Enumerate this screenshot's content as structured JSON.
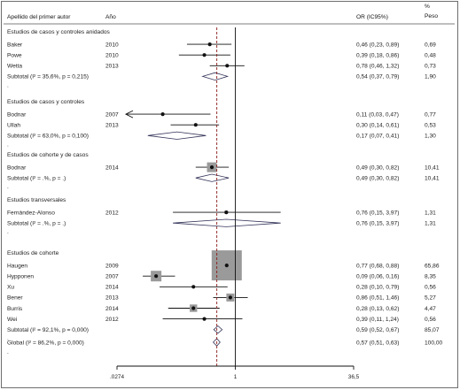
{
  "chart_data": {
    "type": "forest",
    "x_scale": "log",
    "xlim": [
      0.0274,
      36.5
    ],
    "null_value": 1,
    "overall_reference": 0.57,
    "columns": {
      "author": "Apellido del primer autor",
      "year": "Año",
      "or": "OR (IC95%)",
      "weight_line1": "%",
      "weight_line2": "Peso"
    },
    "ticks": [
      {
        "value": 0.0274,
        "label": ".0274"
      },
      {
        "value": 1,
        "label": "1"
      },
      {
        "value": 36.5,
        "label": "36,5"
      }
    ],
    "groups": [
      {
        "title": "Estudios de casos y controles anidados",
        "studies": [
          {
            "author": "Baker",
            "year": "2010",
            "or": 0.46,
            "lo": 0.23,
            "hi": 0.89,
            "label": "0,46 (0,23, 0,89)",
            "weight": "0,69",
            "box": 1.6
          },
          {
            "author": "Powe",
            "year": "2010",
            "or": 0.39,
            "lo": 0.18,
            "hi": 0.86,
            "label": "0,39 (0,18, 0,86)",
            "weight": "0,48",
            "box": 1.6
          },
          {
            "author": "Wetta",
            "year": "2013",
            "or": 0.78,
            "lo": 0.46,
            "hi": 1.32,
            "label": "0,78 (0,46, 1,32)",
            "weight": "0,73",
            "box": 1.6
          }
        ],
        "subtotal": {
          "label": "Subtotal  (I² = 35,6%, p = 0,215)",
          "or": 0.54,
          "lo": 0.37,
          "hi": 0.79,
          "text": "0,54 (0,37, 0,79)",
          "weight": "1,90"
        }
      },
      {
        "title": "Estudios de casos y controles",
        "studies": [
          {
            "author": "Bodnar",
            "year": "2007",
            "or": 0.11,
            "lo": 0.03,
            "hi": 0.47,
            "label": "0,11 (0,03, 0,47)",
            "weight": "0,77",
            "box": 1.6,
            "arrow_left": true
          },
          {
            "author": "Ullah",
            "year": "2013",
            "or": 0.3,
            "lo": 0.14,
            "hi": 0.61,
            "label": "0,30 (0,14, 0,61)",
            "weight": "0,53",
            "box": 1.6
          }
        ],
        "subtotal": {
          "label": "Subtotal  (I² = 63,0%, p = 0,100)",
          "or": 0.17,
          "lo": 0.07,
          "hi": 0.41,
          "text": "0,17 (0,07, 0,41)",
          "weight": "1,30"
        }
      },
      {
        "title": "Estudios de cohorte y de casos",
        "studies": [
          {
            "author": "Bodnar",
            "year": "2014",
            "or": 0.49,
            "lo": 0.3,
            "hi": 0.82,
            "label": "0,49 (0,30, 0,82)",
            "weight": "10,41",
            "box": 5.5
          }
        ],
        "subtotal": {
          "label": "Subtotal  (I² = .%, p = .)",
          "or": 0.49,
          "lo": 0.3,
          "hi": 0.82,
          "text": "0,49 (0,30, 0,82)",
          "weight": "10,41"
        }
      },
      {
        "title": "Estudios transversales",
        "studies": [
          {
            "author": "Fernández-Alonso",
            "year": "2012",
            "or": 0.76,
            "lo": 0.15,
            "hi": 3.97,
            "label": "0,76 (0,15, 3,97)",
            "weight": "1,31",
            "box": 1.9
          }
        ],
        "subtotal": {
          "label": "Subtotal  (I² = .%, p = .)",
          "or": 0.76,
          "lo": 0.15,
          "hi": 3.97,
          "text": "0,76 (0,15, 3,97)",
          "weight": "1,31"
        }
      },
      {
        "title": "Estudios de cohorte",
        "studies": [
          {
            "author": "Haugen",
            "year": "2009",
            "or": 0.77,
            "lo": 0.68,
            "hi": 0.88,
            "label": "0,77 (0,68, 0,88)",
            "weight": "65,86",
            "box": 17
          },
          {
            "author": "Hypponen",
            "year": "2007",
            "or": 0.09,
            "lo": 0.06,
            "hi": 0.16,
            "label": "0,09 (0,06, 0,16)",
            "weight": "8,35",
            "box": 6
          },
          {
            "author": "Xu",
            "year": "2014",
            "or": 0.28,
            "lo": 0.1,
            "hi": 0.79,
            "label": "0,28 (0,10, 0,79)",
            "weight": "0,56",
            "box": 1.6
          },
          {
            "author": "Bener",
            "year": "2013",
            "or": 0.86,
            "lo": 0.51,
            "hi": 1.46,
            "label": "0,86 (0,51, 1,46)",
            "weight": "5,27",
            "box": 4.5
          },
          {
            "author": "Burris",
            "year": "2014",
            "or": 0.28,
            "lo": 0.13,
            "hi": 0.62,
            "label": "0,28 (0,13, 0,62)",
            "weight": "4,47",
            "box": 4.2
          },
          {
            "author": "Wei",
            "year": "2012",
            "or": 0.39,
            "lo": 0.11,
            "hi": 1.24,
            "label": "0,39 (0,11, 1,24)",
            "weight": "0,56",
            "box": 1.6
          }
        ],
        "subtotal": {
          "label": "Subtotal  (I² = 92,1%, p = 0,000)",
          "or": 0.59,
          "lo": 0.52,
          "hi": 0.67,
          "text": "0,59 (0,52, 0,67)",
          "weight": "85,07"
        }
      }
    ],
    "overall": {
      "label": "Global  (I² = 86,2%, p = 0,000)",
      "or": 0.57,
      "lo": 0.51,
      "hi": 0.63,
      "text": "0,57 (0,51, 0,63)",
      "weight": "100,00"
    }
  }
}
